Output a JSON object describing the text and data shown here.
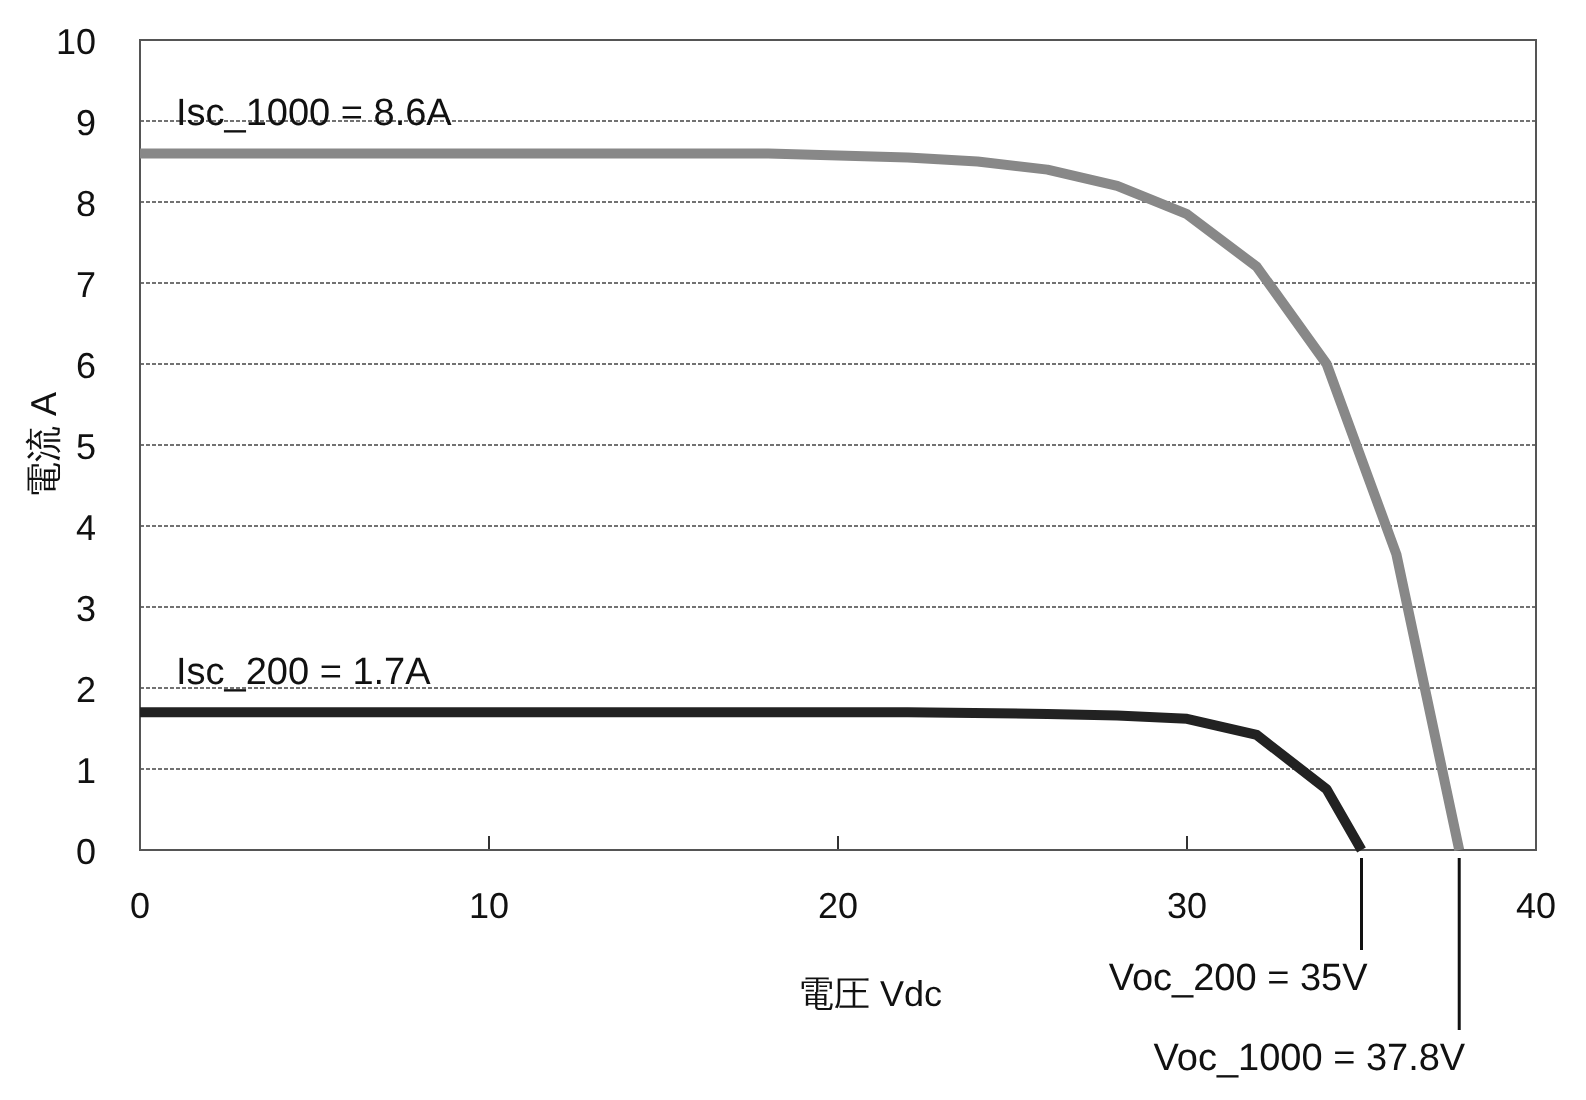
{
  "chart_data": {
    "type": "line",
    "xlabel": "電圧 Vdc",
    "ylabel": "電流 A",
    "xlim": [
      0,
      40
    ],
    "ylim": [
      0,
      10
    ],
    "xticks": [
      0,
      10,
      20,
      30,
      40
    ],
    "yticks": [
      0,
      1,
      2,
      3,
      4,
      5,
      6,
      7,
      8,
      9,
      10
    ],
    "grid": "y",
    "line_style": "solid",
    "marker": "none",
    "series": [
      {
        "color": "#888888",
        "x": [
          0,
          18,
          22,
          24,
          26,
          28,
          30,
          32,
          34,
          36,
          37.8
        ],
        "values": [
          8.6,
          8.6,
          8.55,
          8.5,
          8.4,
          8.2,
          7.85,
          7.2,
          6.0,
          3.65,
          0
        ]
      },
      {
        "color": "#222222",
        "x": [
          0,
          22,
          26,
          28,
          30,
          32,
          34,
          35
        ],
        "values": [
          1.7,
          1.7,
          1.68,
          1.66,
          1.62,
          1.42,
          0.75,
          0
        ]
      }
    ],
    "annotations": [
      {
        "text": "Isc_1000 = 8.6A",
        "x": 0,
        "y": 8.6
      },
      {
        "text": "Isc_200 = 1.7A",
        "x": 0,
        "y": 1.7
      }
    ],
    "ref_lines": [
      {
        "axis": "x",
        "value": 35,
        "label": "Voc_200 = 35V"
      },
      {
        "axis": "x",
        "value": 37.8,
        "label": "Voc_1000 = 37.8V"
      }
    ]
  }
}
